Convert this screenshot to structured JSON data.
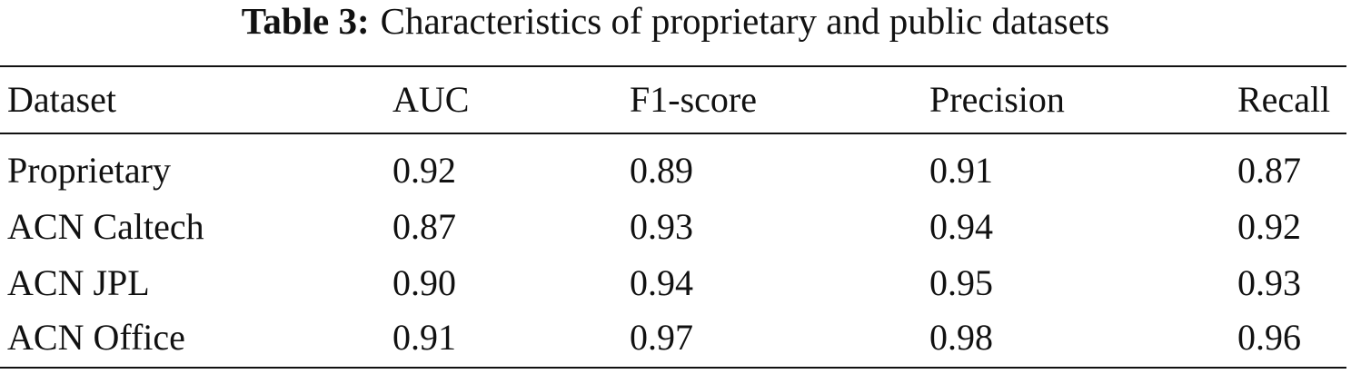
{
  "caption": {
    "label": "Table 3:",
    "text": "Characteristics of proprietary and public datasets"
  },
  "table": {
    "header": [
      "Dataset",
      "AUC",
      "F1-score",
      "Precision",
      "Recall"
    ],
    "rows": [
      [
        "Proprietary",
        "0.92",
        "0.89",
        "0.91",
        "0.87"
      ],
      [
        "ACN Caltech",
        "0.87",
        "0.93",
        "0.94",
        "0.92"
      ],
      [
        "ACN JPL",
        "0.90",
        "0.94",
        "0.95",
        "0.93"
      ],
      [
        "ACN Office",
        "0.91",
        "0.97",
        "0.98",
        "0.96"
      ]
    ]
  }
}
